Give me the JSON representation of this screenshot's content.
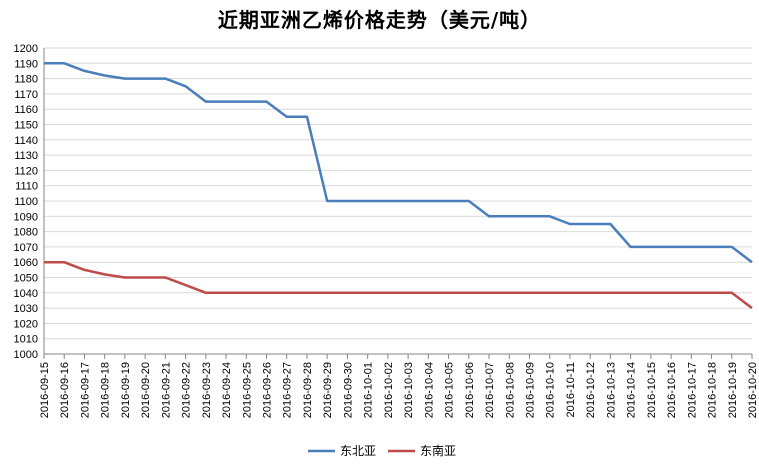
{
  "chart_data": {
    "type": "line",
    "title": "近期亚洲乙烯价格走势（美元/吨）",
    "xlabel": "",
    "ylabel": "",
    "ylim": [
      1000,
      1200
    ],
    "yticks": [
      1000,
      1010,
      1020,
      1030,
      1040,
      1050,
      1060,
      1070,
      1080,
      1090,
      1100,
      1110,
      1120,
      1130,
      1140,
      1150,
      1160,
      1170,
      1180,
      1190,
      1200
    ],
    "grid": "horizontal",
    "legend_position": "bottom",
    "categories": [
      "2016-09-15",
      "2016-09-16",
      "2016-09-17",
      "2016-09-18",
      "2016-09-19",
      "2016-09-20",
      "2016-09-21",
      "2016-09-22",
      "2016-09-23",
      "2016-09-24",
      "2016-09-25",
      "2016-09-26",
      "2016-09-27",
      "2016-09-28",
      "2016-09-29",
      "2016-09-30",
      "2016-10-01",
      "2016-10-02",
      "2016-10-03",
      "2016-10-04",
      "2016-10-05",
      "2016-10-06",
      "2016-10-07",
      "2016-10-08",
      "2016-10-09",
      "2016-10-10",
      "2016-10-11",
      "2016-10-12",
      "2016-10-13",
      "2016-10-14",
      "2016-10-15",
      "2016-10-16",
      "2016-10-17",
      "2016-10-18",
      "2016-10-19",
      "2016-10-20"
    ],
    "series": [
      {
        "name": "东北亚",
        "color": "#4a7ebb",
        "values": [
          1190,
          1190,
          1185,
          1182,
          1180,
          1180,
          1180,
          1175,
          1165,
          1165,
          1165,
          1165,
          1155,
          1155,
          1100,
          1100,
          1100,
          1100,
          1100,
          1100,
          1100,
          1100,
          1090,
          1090,
          1090,
          1090,
          1085,
          1085,
          1085,
          1070,
          1070,
          1070,
          1070,
          1070,
          1070,
          1060
        ]
      },
      {
        "name": "东南亚",
        "color": "#be4b48",
        "values": [
          1060,
          1060,
          1055,
          1052,
          1050,
          1050,
          1050,
          1045,
          1040,
          1040,
          1040,
          1040,
          1040,
          1040,
          1040,
          1040,
          1040,
          1040,
          1040,
          1040,
          1040,
          1040,
          1040,
          1040,
          1040,
          1040,
          1040,
          1040,
          1040,
          1040,
          1040,
          1040,
          1040,
          1040,
          1040,
          1030
        ]
      }
    ]
  }
}
